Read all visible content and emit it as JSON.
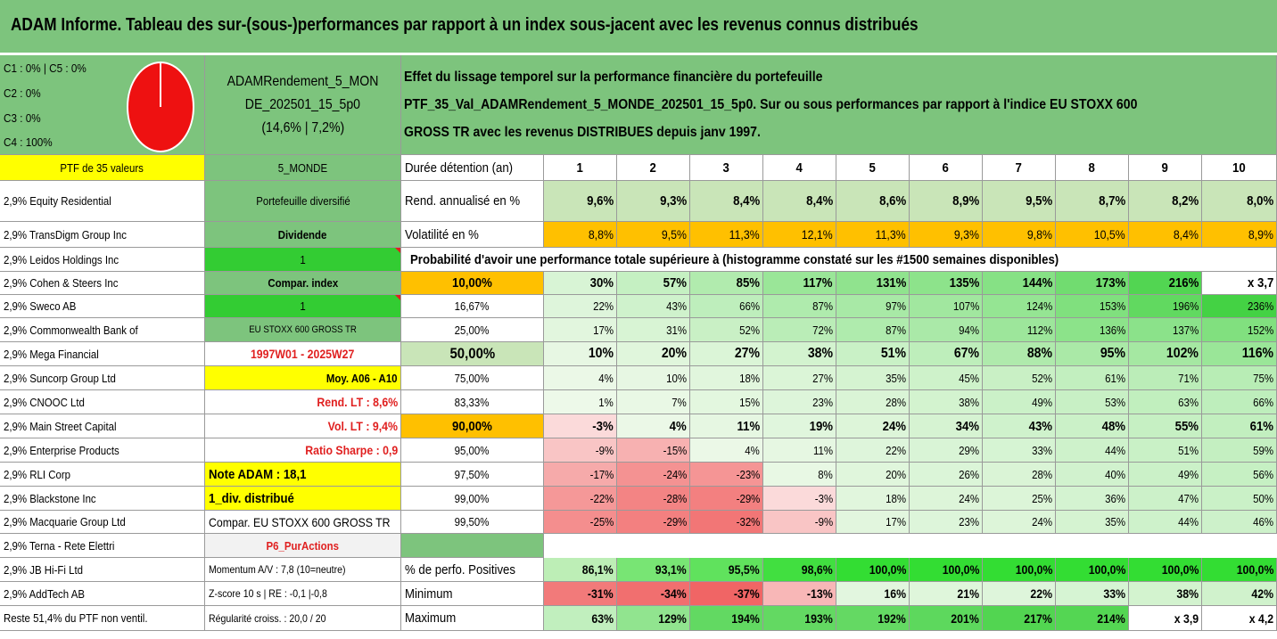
{
  "title": "ADAM Informe. Tableau des sur-(sous-)performances par rapport à un index sous-jacent avec les revenus connus distribués",
  "colors": {
    "header_green": "#7dc47d",
    "highlight_yellow": "#ffff00",
    "highlight_orange": "#ffc000",
    "bright_green": "#33cc33",
    "negative_red": "#e02020",
    "pie_red": "#ee1111"
  },
  "legend": {
    "line1": "C1 : 0% | C5 : 0%",
    "line2": "C2 : 0%",
    "line3": "C3 : 0%",
    "line4": "C4 : 100%"
  },
  "fund": {
    "name_line1": "ADAMRendement_5_MON",
    "name_line2": "DE_202501_15_5p0",
    "name_line3": "(14,6% | 7,2%)"
  },
  "description": {
    "line1": "Effet du lissage temporel sur la performance financière du portefeuille",
    "line2": "PTF_35_Val_ADAMRendement_5_MONDE_202501_15_5p0. Sur ou sous performances par rapport à l'indice EU STOXX 600",
    "line3": "GROSS TR avec les revenus DISTRIBUES depuis janv 1997."
  },
  "ptf_header": "PTF de 35 valeurs",
  "holdings": [
    "2,9% Equity Residential",
    "2,9% TransDigm Group Inc",
    "2,9% Leidos Holdings Inc",
    "2,9% Cohen & Steers Inc",
    "2,9% Sweco AB",
    "2,9% Commonwealth Bank of",
    "2,9% Mega Financial",
    "2,9% Suncorp Group Ltd",
    "2,9% CNOOC Ltd",
    "2,9% Main Street Capital",
    "2,9% Enterprise Products",
    "2,9% RLI Corp",
    "2,9% Blackstone Inc",
    "2,9% Macquarie Group Ltd",
    "2,9% Terna - Rete Elettri",
    "2,9% JB Hi-Fi Ltd",
    "2,9% AddTech AB",
    "Reste 51,4% du PTF non ventil."
  ],
  "info": [
    "5_MONDE",
    "Portefeuille diversifié",
    "Dividende",
    "1",
    "Compar. index",
    "1",
    "EU STOXX 600 GROSS TR",
    "1997W01 - 2025W27",
    "Moy. A06 - A10",
    "Rend. LT : 8,6%",
    "Vol. LT : 9,4%",
    "Ratio Sharpe : 0,9",
    "Note ADAM : 18,1",
    "1_div. distribué",
    "Compar. EU STOXX 600 GROSS TR",
    "P6_PurActions",
    "Momentum A/V : 7,8 (10=neutre)",
    "Z-score 10 s | RE : -0,1 |-0,8",
    "Régularité croiss. : 20,0 / 20"
  ],
  "table": {
    "duration_label": "Durée détention (an)",
    "years": [
      "1",
      "2",
      "3",
      "4",
      "5",
      "6",
      "7",
      "8",
      "9",
      "10"
    ],
    "rend_label": "Rend. annualisé en %",
    "rend": [
      "9,6%",
      "9,3%",
      "8,4%",
      "8,4%",
      "8,6%",
      "8,9%",
      "9,5%",
      "8,7%",
      "8,2%",
      "8,0%"
    ],
    "vol_label": "Volatilité en %",
    "vol": [
      "8,8%",
      "9,5%",
      "11,3%",
      "12,1%",
      "11,3%",
      "9,3%",
      "9,8%",
      "10,5%",
      "8,4%",
      "8,9%"
    ],
    "prob_title": "Probabilité d'avoir une performance totale supérieure à (histogramme constaté sur les #1500 semaines disponibles)",
    "prob_rows": [
      {
        "label": "10,00%",
        "values": [
          "30%",
          "57%",
          "85%",
          "117%",
          "131%",
          "135%",
          "144%",
          "173%",
          "216%",
          "x 3,7"
        ]
      },
      {
        "label": "16,67%",
        "values": [
          "22%",
          "43%",
          "66%",
          "87%",
          "97%",
          "107%",
          "124%",
          "153%",
          "196%",
          "236%"
        ]
      },
      {
        "label": "25,00%",
        "values": [
          "17%",
          "31%",
          "52%",
          "72%",
          "87%",
          "94%",
          "112%",
          "136%",
          "137%",
          "152%"
        ]
      },
      {
        "label": "50,00%",
        "values": [
          "10%",
          "20%",
          "27%",
          "38%",
          "51%",
          "67%",
          "88%",
          "95%",
          "102%",
          "116%"
        ]
      },
      {
        "label": "75,00%",
        "values": [
          "4%",
          "10%",
          "18%",
          "27%",
          "35%",
          "45%",
          "52%",
          "61%",
          "71%",
          "75%"
        ]
      },
      {
        "label": "83,33%",
        "values": [
          "1%",
          "7%",
          "15%",
          "23%",
          "28%",
          "38%",
          "49%",
          "53%",
          "63%",
          "66%"
        ]
      },
      {
        "label": "90,00%",
        "values": [
          "-3%",
          "4%",
          "11%",
          "19%",
          "24%",
          "34%",
          "43%",
          "48%",
          "55%",
          "61%"
        ]
      },
      {
        "label": "95,00%",
        "values": [
          "-9%",
          "-15%",
          "4%",
          "11%",
          "22%",
          "29%",
          "33%",
          "44%",
          "51%",
          "59%"
        ]
      },
      {
        "label": "97,50%",
        "values": [
          "-17%",
          "-24%",
          "-23%",
          "8%",
          "20%",
          "26%",
          "28%",
          "40%",
          "49%",
          "56%"
        ]
      },
      {
        "label": "99,00%",
        "values": [
          "-22%",
          "-28%",
          "-29%",
          "-3%",
          "18%",
          "24%",
          "25%",
          "36%",
          "47%",
          "50%"
        ]
      },
      {
        "label": "99,50%",
        "values": [
          "-25%",
          "-29%",
          "-32%",
          "-9%",
          "17%",
          "23%",
          "24%",
          "35%",
          "44%",
          "46%"
        ]
      }
    ],
    "pos_label": "% de perfo. Positives",
    "pos": [
      "86,1%",
      "93,1%",
      "95,5%",
      "98,6%",
      "100,0%",
      "100,0%",
      "100,0%",
      "100,0%",
      "100,0%",
      "100,0%"
    ],
    "min_label": "Minimum",
    "min": [
      "-31%",
      "-34%",
      "-37%",
      "-13%",
      "16%",
      "21%",
      "22%",
      "33%",
      "38%",
      "42%"
    ],
    "max_label": "Maximum",
    "max": [
      "63%",
      "129%",
      "194%",
      "193%",
      "192%",
      "201%",
      "217%",
      "214%",
      "x 3,9",
      "x 4,2"
    ]
  }
}
